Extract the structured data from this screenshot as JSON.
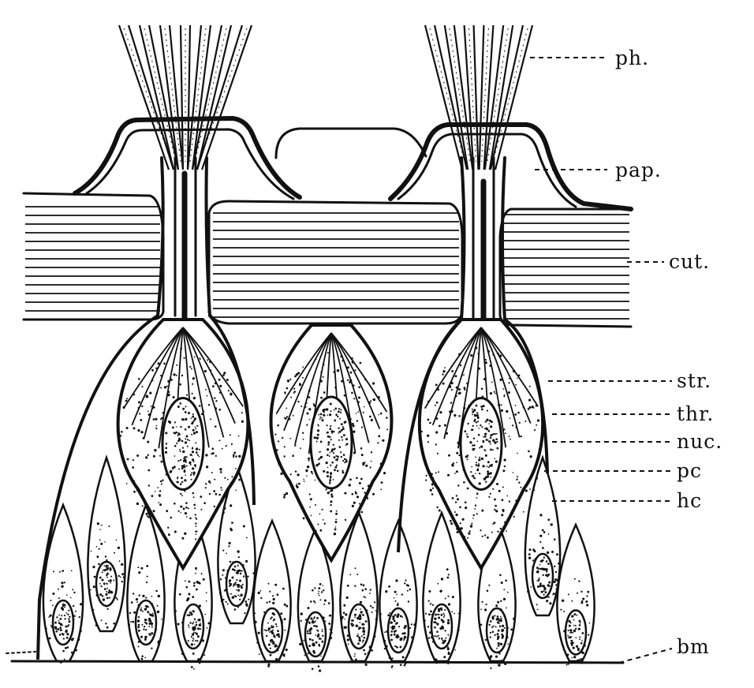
{
  "figure": {
    "labels": [
      {
        "id": "ph",
        "text": "ph."
      },
      {
        "id": "pap",
        "text": "pap."
      },
      {
        "id": "cut",
        "text": "cut."
      },
      {
        "id": "str",
        "text": "str."
      },
      {
        "id": "thr",
        "text": "thr."
      },
      {
        "id": "nuc",
        "text": "nuc."
      },
      {
        "id": "pc",
        "text": "pc"
      },
      {
        "id": "hc",
        "text": "hc"
      },
      {
        "id": "bm",
        "text": "bm"
      }
    ]
  },
  "colors": {
    "ink": "#111111",
    "paper": "#ffffff"
  }
}
